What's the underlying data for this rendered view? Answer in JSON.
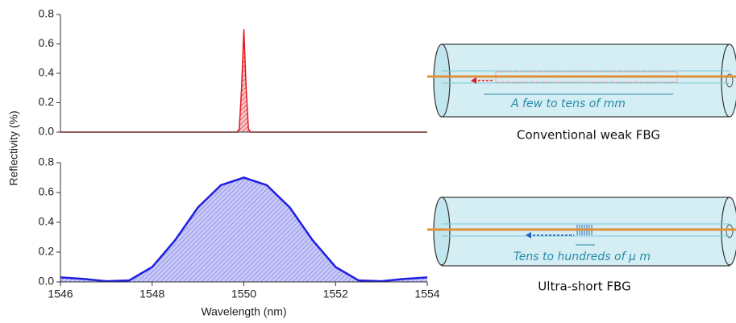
{
  "chart_data": [
    {
      "type": "line",
      "y_label": "Reflectivity (%)",
      "x": [
        1546,
        1549.85,
        1549.9,
        1549.95,
        1550,
        1550.05,
        1550.1,
        1550.15,
        1554
      ],
      "series": [
        {
          "color": "#e8141c",
          "values": [
            0,
            0,
            0.02,
            0.3,
            0.7,
            0.3,
            0.02,
            0,
            0
          ]
        }
      ],
      "xlim": [
        1546,
        1554
      ],
      "ylim": [
        0,
        0.8
      ],
      "yticks": [
        {
          "value": 0,
          "label": "0.0"
        },
        0.2,
        0.4,
        0.6,
        0.8
      ]
    },
    {
      "type": "line",
      "x_label": "Wavelength (nm)",
      "x": [
        1546,
        1546.5,
        1547,
        1547.5,
        1548,
        1548.5,
        1549,
        1549.5,
        1550,
        1550.5,
        1551,
        1551.5,
        1552,
        1552.5,
        1553,
        1553.5,
        1554
      ],
      "series": [
        {
          "color": "#1f1fe0",
          "values": [
            0.03,
            0.02,
            0.005,
            0.01,
            0.1,
            0.28,
            0.5,
            0.65,
            0.7,
            0.65,
            0.5,
            0.28,
            0.1,
            0.01,
            0.005,
            0.02,
            0.03
          ]
        }
      ],
      "xlim": [
        1546,
        1554
      ],
      "xticks": [
        1546,
        1548,
        1550,
        1552,
        1554
      ],
      "ylim": [
        0,
        0.8
      ],
      "yticks": [
        {
          "value": 0,
          "label": "0.0"
        },
        0.2,
        0.4,
        0.6,
        0.8
      ]
    }
  ],
  "diagrams": [
    {
      "length_note": "A few to tens of mm",
      "caption": "Conventional weak FBG"
    },
    {
      "length_note": "Tens to hundreds of μ m",
      "caption": "Ultra-short FBG"
    }
  ]
}
